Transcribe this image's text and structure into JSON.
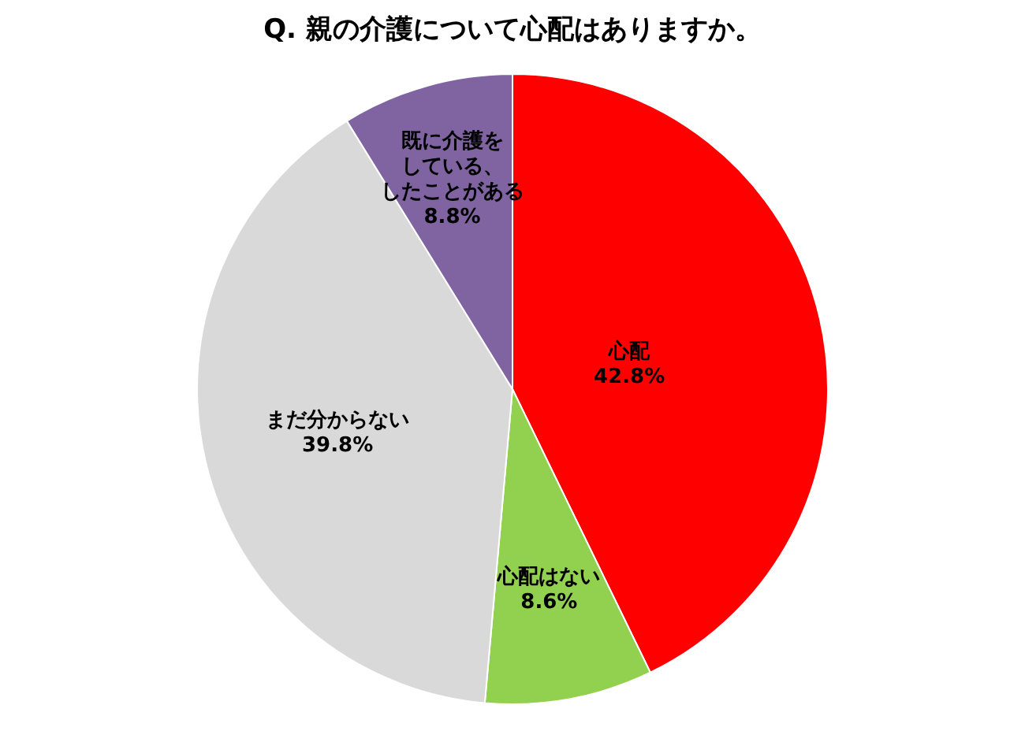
{
  "chart_data": {
    "type": "pie",
    "title": "Q. 親の介護について心配はありますか。",
    "categories": [
      "心配",
      "心配はない",
      "まだ分からない",
      "既に介護をしている、したことがある"
    ],
    "values": [
      42.8,
      8.6,
      39.8,
      8.8
    ],
    "colors": [
      "#ff0000",
      "#92d050",
      "#d9d9d9",
      "#8064a2"
    ],
    "value_labels": [
      "42.8%",
      "8.6%",
      "39.8%",
      "8.8%"
    ]
  }
}
